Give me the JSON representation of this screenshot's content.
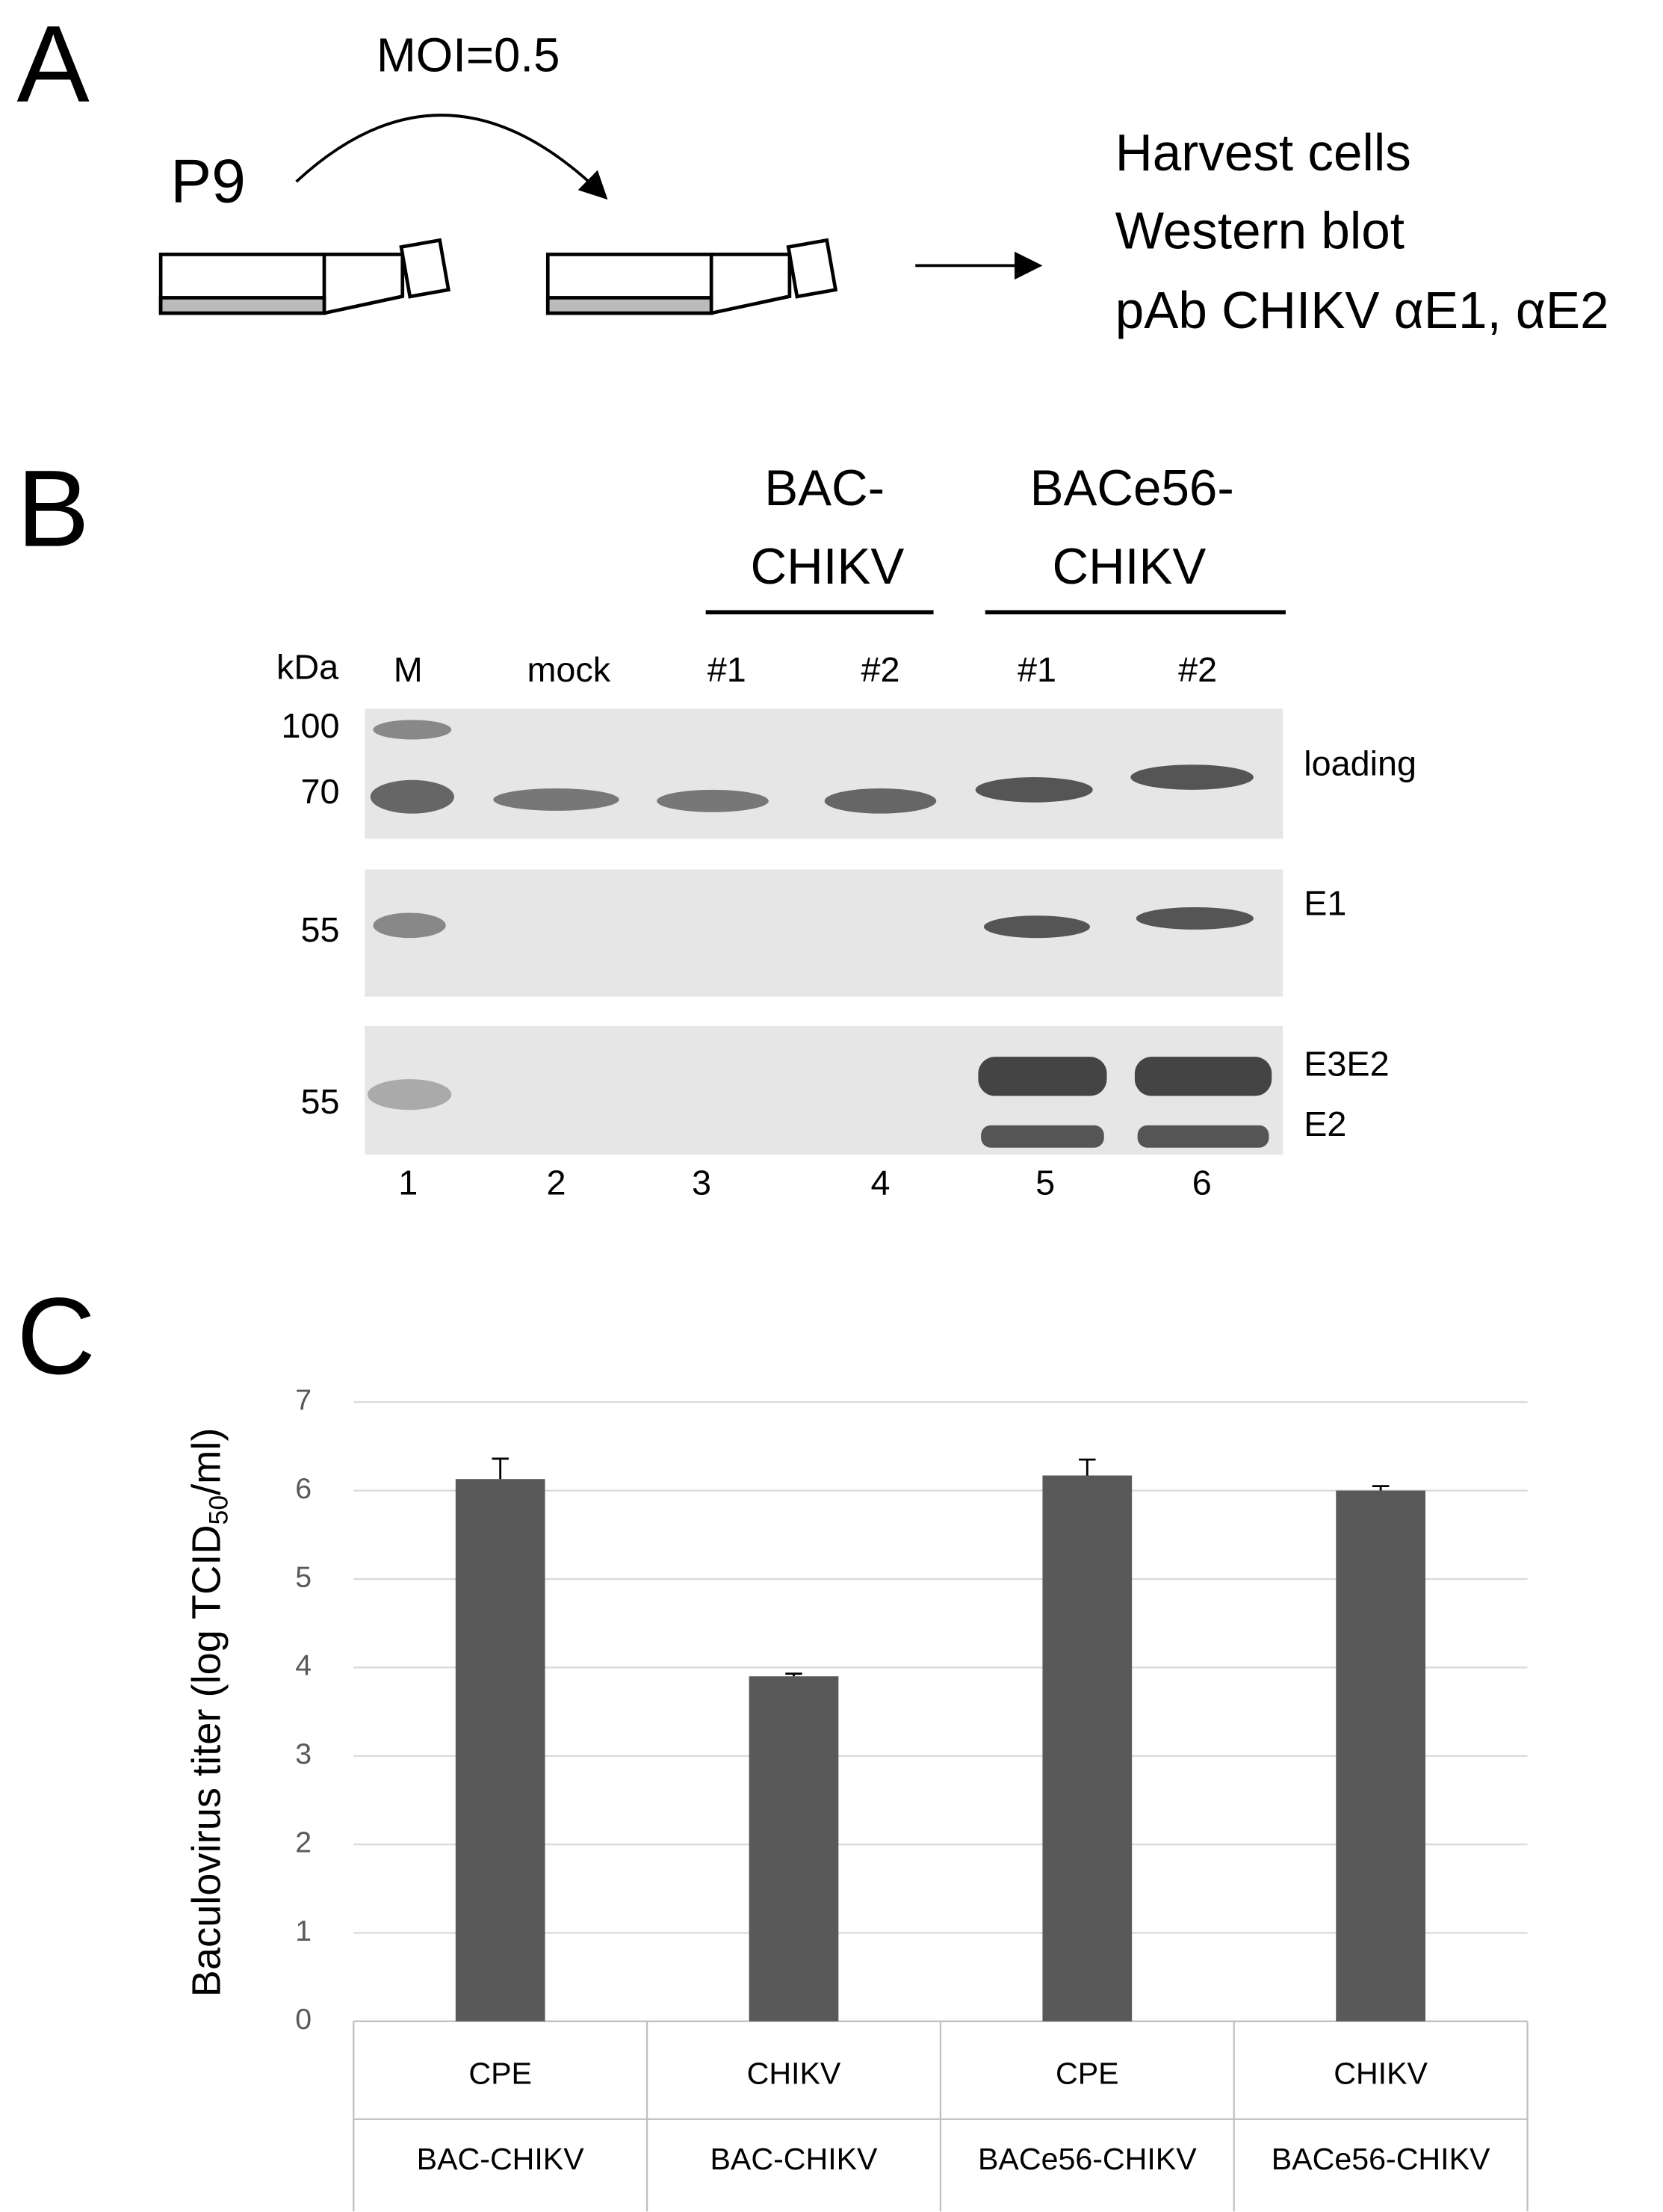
{
  "panel_a": {
    "label": "A",
    "moi": "MOI=0.5",
    "passage": "P9",
    "steps": [
      "Harvest cells",
      "Western blot",
      "pAb CHIKV αE1, αE2"
    ]
  },
  "panel_b": {
    "label": "B",
    "groups": [
      {
        "lines": [
          "BAC-",
          "CHIKV"
        ]
      },
      {
        "lines": [
          "BACe56-",
          "CHIKV"
        ]
      }
    ],
    "unit": "kDa",
    "lanes": [
      "M",
      "mock",
      "#1",
      "#2",
      "#1",
      "#2"
    ],
    "lane_numbers": [
      1,
      2,
      3,
      4,
      5,
      6
    ],
    "markers": [
      100,
      70,
      55,
      55
    ],
    "blot_labels": [
      "loading",
      "E1",
      "E3E2",
      "E2"
    ]
  },
  "chart_data": {
    "type": "bar",
    "panel_label": "C",
    "y_label": [
      "Baculovirus titer (log TCID",
      "50",
      "/ml)"
    ],
    "categories": [
      "CPE",
      "CHIKV",
      "CPE",
      "CHIKV"
    ],
    "category_groups": [
      "BAC-CHIKV",
      "BAC-CHIKV",
      "BACe56-CHIKV",
      "BACe56-CHIKV"
    ],
    "values": [
      6.13,
      3.9,
      6.17,
      6.0
    ],
    "errors": [
      0.23,
      0.03,
      0.18,
      0.05
    ],
    "color": "#595959",
    "ylim": [
      0,
      7
    ],
    "yticks": [
      0,
      1,
      2,
      3,
      4,
      5,
      6,
      7
    ],
    "grid": true
  }
}
